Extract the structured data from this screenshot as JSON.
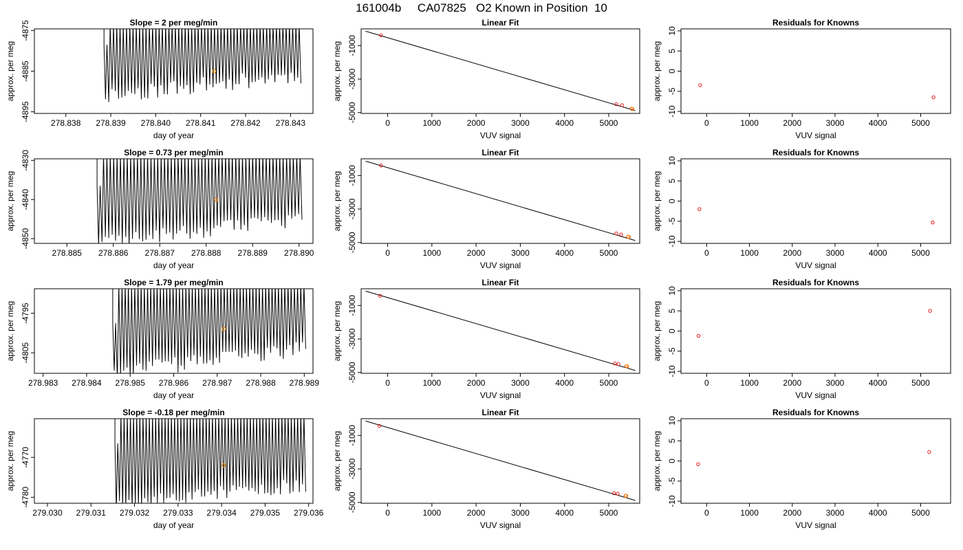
{
  "page_title": "161004b     CA07825   O2 Known in Position  10",
  "colors": {
    "trace": "#000000",
    "point": "#e31a1c",
    "highlight": "#ff8c00",
    "frame": "#000000"
  },
  "chart_data": [
    {
      "type": "line",
      "title": "Slope =  2  per meg/min",
      "xlabel": "day of year",
      "ylabel": "approx. per meg",
      "xlim": [
        278.8373,
        278.8435
      ],
      "ylim": [
        -4895.4,
        -4874.6
      ],
      "xticks": [
        "278.838",
        "278.839",
        "278.840",
        "278.841",
        "278.842",
        "278.843"
      ],
      "xtick_values": [
        278.838,
        278.839,
        278.84,
        278.841,
        278.842,
        278.843
      ],
      "yticks": [
        "-4875",
        "-4885",
        "-4895"
      ],
      "ytick_values": [
        -4875,
        -4885,
        -4895
      ],
      "trace": {
        "x_start": 278.83885,
        "x_end": 278.8432,
        "n_cycles": 60,
        "top": -4874.6,
        "base_start": -4878,
        "base_end": -4876,
        "low_start": -4891,
        "low_end": -4886,
        "seed": 11
      },
      "highlight_point": {
        "x": 278.8413,
        "y": -4885
      }
    },
    {
      "type": "scatter",
      "title": "Linear Fit",
      "xlabel": "VUV signal",
      "ylabel": "approx. per meg",
      "xlim": [
        -600,
        5700
      ],
      "ylim": [
        -5050,
        0
      ],
      "xticks": [
        "0",
        "1000",
        "2000",
        "3000",
        "4000",
        "5000"
      ],
      "xtick_values": [
        0,
        1000,
        2000,
        3000,
        4000,
        5000
      ],
      "yticks": [
        "-1000",
        "-3000",
        "-5000"
      ],
      "ytick_values": [
        -1000,
        -3000,
        -5000
      ],
      "fit_line": {
        "x": [
          -500,
          5600
        ],
        "y": [
          -140,
          -4880
        ]
      },
      "points": [
        {
          "x": -150,
          "y": -380
        },
        {
          "x": 5170,
          "y": -4500
        },
        {
          "x": 5300,
          "y": -4560
        },
        {
          "x": 5520,
          "y": -4760
        }
      ],
      "highlight_point": {
        "x": 5530,
        "y": -4780
      }
    },
    {
      "type": "scatter",
      "title": "Residuals for Knowns",
      "xlabel": "VUV signal",
      "ylabel": "approx. per meg",
      "xlim": [
        -600,
        5700
      ],
      "ylim": [
        -10.5,
        10.5
      ],
      "xticks": [
        "0",
        "1000",
        "2000",
        "3000",
        "4000",
        "5000"
      ],
      "xtick_values": [
        0,
        1000,
        2000,
        3000,
        4000,
        5000
      ],
      "yticks": [
        "-10",
        "-5",
        "0",
        "5",
        "10"
      ],
      "ytick_values": [
        -10,
        -5,
        0,
        5,
        10
      ],
      "points": [
        {
          "x": -150,
          "y": -3.5
        },
        {
          "x": 5300,
          "y": -6.5
        }
      ]
    },
    {
      "type": "line",
      "title": "Slope =  0.73  per meg/min",
      "xlabel": "day of year",
      "ylabel": "approx. per meg",
      "xlim": [
        278.8843,
        278.8903
      ],
      "ylim": [
        -4851.2,
        -4829.6
      ],
      "xticks": [
        "278.885",
        "278.886",
        "278.887",
        "278.888",
        "278.889",
        "278.890"
      ],
      "xtick_values": [
        278.885,
        278.886,
        278.887,
        278.888,
        278.889,
        278.89
      ],
      "yticks": [
        "-4830",
        "-4840",
        "-4850"
      ],
      "ytick_values": [
        -4830,
        -4840,
        -4850
      ],
      "trace": {
        "x_start": 278.88565,
        "x_end": 278.89003,
        "n_cycles": 60,
        "top": -4829.6,
        "base_start": -4836,
        "base_end": -4832,
        "low_start": -4851,
        "low_end": -4845,
        "seed": 23
      },
      "highlight_point": {
        "x": 278.88822,
        "y": -4840
      }
    },
    {
      "type": "scatter",
      "title": "Linear Fit",
      "xlabel": "VUV signal",
      "ylabel": "approx. per meg",
      "xlim": [
        -600,
        5700
      ],
      "ylim": [
        -5050,
        0
      ],
      "xticks": [
        "0",
        "1000",
        "2000",
        "3000",
        "4000",
        "5000"
      ],
      "xtick_values": [
        0,
        1000,
        2000,
        3000,
        4000,
        5000
      ],
      "yticks": [
        "-1000",
        "-3000",
        "-5000"
      ],
      "ytick_values": [
        -1000,
        -3000,
        -5000
      ],
      "fit_line": {
        "x": [
          -500,
          5600
        ],
        "y": [
          -140,
          -4880
        ]
      },
      "points": [
        {
          "x": -150,
          "y": -400
        },
        {
          "x": 5170,
          "y": -4460
        },
        {
          "x": 5280,
          "y": -4520
        },
        {
          "x": 5440,
          "y": -4650
        }
      ],
      "highlight_point": {
        "x": 5450,
        "y": -4660
      }
    },
    {
      "type": "scatter",
      "title": "Residuals for Knowns",
      "xlabel": "VUV signal",
      "ylabel": "approx. per meg",
      "xlim": [
        -600,
        5700
      ],
      "ylim": [
        -10.5,
        10.5
      ],
      "xticks": [
        "0",
        "1000",
        "2000",
        "3000",
        "4000",
        "5000"
      ],
      "xtick_values": [
        0,
        1000,
        2000,
        3000,
        4000,
        5000
      ],
      "yticks": [
        "-10",
        "-5",
        "0",
        "5",
        "10"
      ],
      "ytick_values": [
        -10,
        -5,
        0,
        5,
        10
      ],
      "points": [
        {
          "x": -170,
          "y": -2.0
        },
        {
          "x": 5280,
          "y": -5.3
        }
      ]
    },
    {
      "type": "line",
      "title": "Slope =  1.79  per meg/min",
      "xlabel": "day of year",
      "ylabel": "approx. per meg",
      "xlim": [
        278.9828,
        278.9892
      ],
      "ylim": [
        -4810.2,
        -4788.8
      ],
      "xticks": [
        "278.983",
        "278.984",
        "278.985",
        "278.986",
        "278.987",
        "278.988",
        "278.989"
      ],
      "xtick_values": [
        278.983,
        278.984,
        278.985,
        278.986,
        278.987,
        278.988,
        278.989
      ],
      "yticks": [
        "-4795",
        "-4805"
      ],
      "ytick_values": [
        -4795,
        -4805
      ],
      "trace": {
        "x_start": 278.9846,
        "x_end": 278.989,
        "n_cycles": 60,
        "top": -4788.8,
        "base_start": -4797,
        "base_end": -4792,
        "low_start": -4810,
        "low_end": -4804,
        "seed": 37
      },
      "highlight_point": {
        "x": 278.98715,
        "y": -4799
      }
    },
    {
      "type": "scatter",
      "title": "Linear Fit",
      "xlabel": "VUV signal",
      "ylabel": "approx. per meg",
      "xlim": [
        -600,
        5700
      ],
      "ylim": [
        -5050,
        0
      ],
      "xticks": [
        "0",
        "1000",
        "2000",
        "3000",
        "4000",
        "5000"
      ],
      "xtick_values": [
        0,
        1000,
        2000,
        3000,
        4000,
        5000
      ],
      "yticks": [
        "-1000",
        "-3000",
        "-5000"
      ],
      "ytick_values": [
        -1000,
        -3000,
        -5000
      ],
      "fit_line": {
        "x": [
          -500,
          5600
        ],
        "y": [
          -140,
          -4880
        ]
      },
      "points": [
        {
          "x": -170,
          "y": -420
        },
        {
          "x": 5140,
          "y": -4460
        },
        {
          "x": 5220,
          "y": -4500
        },
        {
          "x": 5400,
          "y": -4620
        }
      ],
      "highlight_point": {
        "x": 5410,
        "y": -4630
      }
    },
    {
      "type": "scatter",
      "title": "Residuals for Knowns",
      "xlabel": "VUV signal",
      "ylabel": "approx. per meg",
      "xlim": [
        -600,
        5700
      ],
      "ylim": [
        -10.5,
        10.5
      ],
      "xticks": [
        "0",
        "1000",
        "2000",
        "3000",
        "4000",
        "5000"
      ],
      "xtick_values": [
        0,
        1000,
        2000,
        3000,
        4000,
        5000
      ],
      "yticks": [
        "-10",
        "-5",
        "0",
        "5",
        "10"
      ],
      "ytick_values": [
        -10,
        -5,
        0,
        5,
        10
      ],
      "points": [
        {
          "x": -190,
          "y": -1.2
        },
        {
          "x": 5220,
          "y": 5.0
        }
      ]
    },
    {
      "type": "line",
      "title": "Slope =  -0.18  per meg/min",
      "xlabel": "day of year",
      "ylabel": "approx. per meg",
      "xlim": [
        279.0297,
        279.0361
      ],
      "ylim": [
        -4781.5,
        -4760.3
      ],
      "xticks": [
        "279.030",
        "279.031",
        "279.032",
        "279.033",
        "279.034",
        "279.035",
        "279.036"
      ],
      "xtick_values": [
        279.03,
        279.031,
        279.032,
        279.033,
        279.034,
        279.035,
        279.036
      ],
      "yticks": [
        "-4770",
        "-4780"
      ],
      "ytick_values": [
        -4770,
        -4780
      ],
      "trace": {
        "x_start": 279.03155,
        "x_end": 279.0359,
        "n_cycles": 60,
        "top": -4760.3,
        "base_start": -4766,
        "base_end": -4763,
        "low_start": -4781.5,
        "low_end": -4777,
        "seed": 53
      },
      "highlight_point": {
        "x": 279.03405,
        "y": -4772
      }
    },
    {
      "type": "scatter",
      "title": "Linear Fit",
      "xlabel": "VUV signal",
      "ylabel": "approx. per meg",
      "xlim": [
        -600,
        5700
      ],
      "ylim": [
        -5050,
        0
      ],
      "xticks": [
        "0",
        "1000",
        "2000",
        "3000",
        "4000",
        "5000"
      ],
      "xtick_values": [
        0,
        1000,
        2000,
        3000,
        4000,
        5000
      ],
      "yticks": [
        "-1000",
        "-3000",
        "-5000"
      ],
      "ytick_values": [
        -1000,
        -3000,
        -5000
      ],
      "fit_line": {
        "x": [
          -500,
          5600
        ],
        "y": [
          -140,
          -4880
        ]
      },
      "points": [
        {
          "x": -190,
          "y": -430
        },
        {
          "x": 5120,
          "y": -4450
        },
        {
          "x": 5200,
          "y": -4480
        },
        {
          "x": 5380,
          "y": -4600
        }
      ],
      "highlight_point": {
        "x": 5390,
        "y": -4610
      }
    },
    {
      "type": "scatter",
      "title": "Residuals for Knowns",
      "xlabel": "VUV signal",
      "ylabel": "approx. per meg",
      "xlim": [
        -600,
        5700
      ],
      "ylim": [
        -10.5,
        10.5
      ],
      "xticks": [
        "0",
        "1000",
        "2000",
        "3000",
        "4000",
        "5000"
      ],
      "xtick_values": [
        0,
        1000,
        2000,
        3000,
        4000,
        5000
      ],
      "yticks": [
        "-10",
        "-5",
        "0",
        "5",
        "10"
      ],
      "ytick_values": [
        -10,
        -5,
        0,
        5,
        10
      ],
      "points": [
        {
          "x": -200,
          "y": -0.8
        },
        {
          "x": 5200,
          "y": 2.2
        }
      ]
    }
  ]
}
